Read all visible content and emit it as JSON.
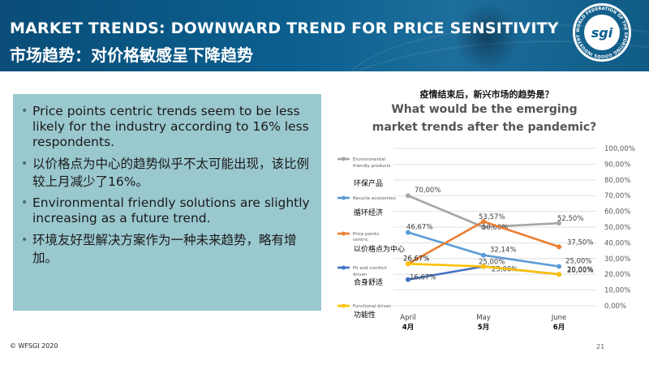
{
  "header": {
    "title_en": "MARKET TRENDS: DOWNWARD TREND FOR PRICE SENSITIVITY",
    "title_zh": "市场趋势：对价格敏感呈下降趋势",
    "logo_text": "sgi",
    "logo_ring_text": "WORLD FEDERATION OF THE SPORTING GOODS INDUSTRY"
  },
  "bullets": [
    "Price points centric trends seem to be less likely for the industry according to 16% less respondents.",
    "以价格点为中心的趋势似乎不太可能出现，该比例较上月减少了16%。",
    "Environmental friendly solutions are slightly increasing as a future trend.",
    "环境友好型解决方案作为一种未来趋势，略有增加。"
  ],
  "footer": {
    "copyright": "© WFSGI 2020",
    "page_number": "21"
  },
  "chart_data": {
    "type": "line",
    "title_zh": "疫情结束后，新兴市场的趋势是？",
    "title": "What would be the emerging market trends after the pandemic?",
    "categories": [
      "April",
      "May",
      "June"
    ],
    "categories_zh": [
      "4月",
      "5月",
      "6月"
    ],
    "ylim": [
      0,
      100
    ],
    "yticks": [
      "0,00%",
      "10,00%",
      "20,00%",
      "30,00%",
      "40,00%",
      "50,00%",
      "60,00%",
      "70,00%",
      "80,00%",
      "90,00%",
      "100,00%"
    ],
    "legend_position": "left",
    "series": [
      {
        "name": "Environmental friendly products",
        "name_zh": "环保产品",
        "color": "#a5a5a5",
        "values": [
          70.0,
          50.0,
          52.5
        ],
        "labels": [
          "70,00%",
          "50,00%",
          "52,50%"
        ]
      },
      {
        "name": "Recycle economies",
        "name_zh": "循环经济",
        "color": "#5b9bd5",
        "values": [
          46.67,
          32.14,
          25.0
        ],
        "labels": [
          "46,67%",
          "32,14%",
          "25,00%"
        ]
      },
      {
        "name": "Price points centric",
        "name_zh": "以价格点为中心",
        "color": "#ed7d31",
        "values": [
          26.67,
          53.57,
          37.5
        ],
        "labels": [
          "26,67%",
          "53,57%",
          "37,50%"
        ]
      },
      {
        "name": "Fit and comfort driven",
        "name_zh": "合身舒适",
        "color": "#4472c4",
        "values": [
          16.67,
          25.0,
          20.0
        ],
        "labels": [
          "16,67%",
          "25,00%",
          "20,00%"
        ]
      },
      {
        "name": "Functional driven",
        "name_zh": "功能性",
        "color": "#ffc000",
        "values": [
          26.67,
          25.0,
          20.0
        ],
        "labels": [
          "26,67%",
          "25,00%",
          "20,00%"
        ]
      }
    ]
  }
}
